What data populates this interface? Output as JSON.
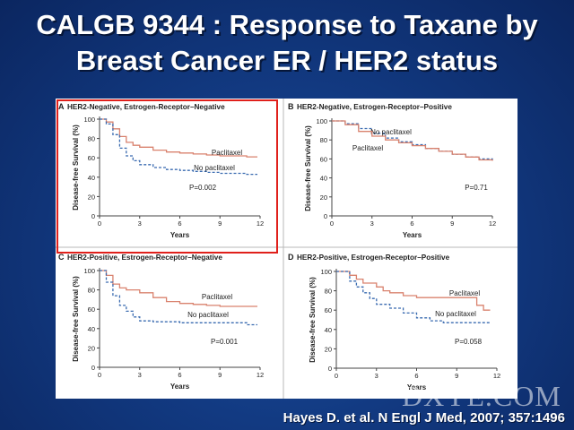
{
  "slide": {
    "title_line1": "CALGB 9344 : Response to Taxane by",
    "title_line2": "Breast Cancer ER / HER2 status",
    "citation": "Hayes D. et al. N Engl J Med, 2007; 357:1496",
    "watermark": "DXYE.COM"
  },
  "colors": {
    "paclitaxel": "#d9826e",
    "no_paclitaxel": "#3a6bb0",
    "highlight": "#e0201b"
  },
  "chart_data": [
    {
      "type": "line",
      "panel_letter": "A",
      "title": "HER2-Negative, Estrogen-Receptor–Negative",
      "xlabel": "Years",
      "ylabel": "Disease-free Survival (%)",
      "xticks": [
        0,
        3,
        6,
        9,
        12
      ],
      "yticks": [
        0,
        20,
        40,
        60,
        80,
        100
      ],
      "xlim": [
        0,
        12
      ],
      "ylim": [
        0,
        100
      ],
      "pvalue": "P=0.002",
      "highlighted": true,
      "series": [
        {
          "name": "Paclitaxel",
          "style": "solid",
          "x": [
            0,
            0.5,
            1,
            1.5,
            2,
            2.5,
            3,
            4,
            5,
            6,
            7,
            8,
            9,
            10,
            11,
            11.8
          ],
          "y": [
            100,
            97,
            90,
            82,
            76,
            73,
            71,
            68,
            66,
            65,
            64,
            63,
            62,
            62,
            61,
            61
          ]
        },
        {
          "name": "No paclitaxel",
          "style": "dashed",
          "x": [
            0,
            0.5,
            1,
            1.5,
            2,
            2.5,
            3,
            4,
            5,
            6,
            7,
            8,
            9,
            10,
            11,
            11.8
          ],
          "y": [
            100,
            95,
            84,
            70,
            62,
            57,
            53,
            50,
            48,
            47,
            46,
            45,
            44,
            44,
            43,
            43
          ]
        }
      ]
    },
    {
      "type": "line",
      "panel_letter": "B",
      "title": "HER2-Negative, Estrogen-Receptor–Positive",
      "xlabel": "Years",
      "ylabel": "Disease-free Survival (%)",
      "xticks": [
        0,
        3,
        6,
        9,
        12
      ],
      "yticks": [
        0,
        20,
        40,
        60,
        80,
        100
      ],
      "xlim": [
        0,
        12
      ],
      "ylim": [
        0,
        100
      ],
      "pvalue": "P=0.71",
      "series": [
        {
          "name": "No paclitaxel",
          "style": "dashed",
          "x": [
            0,
            1,
            2,
            3,
            4,
            5,
            6,
            7,
            8,
            9,
            10,
            11,
            12
          ],
          "y": [
            100,
            97,
            92,
            87,
            82,
            78,
            75,
            71,
            68,
            65,
            62,
            60,
            58
          ]
        },
        {
          "name": "Paclitaxel",
          "style": "solid",
          "x": [
            0,
            1,
            2,
            3,
            4,
            5,
            6,
            7,
            8,
            9,
            10,
            11,
            12
          ],
          "y": [
            100,
            96,
            89,
            84,
            80,
            77,
            74,
            71,
            68,
            65,
            62,
            59,
            58
          ]
        }
      ]
    },
    {
      "type": "line",
      "panel_letter": "C",
      "title": "HER2-Positive, Estrogen-Receptor–Negative",
      "xlabel": "Years",
      "ylabel": "Disease-free Survival (%)",
      "xticks": [
        0,
        3,
        6,
        9,
        12
      ],
      "yticks": [
        0,
        20,
        40,
        60,
        80,
        100
      ],
      "xlim": [
        0,
        12
      ],
      "ylim": [
        0,
        100
      ],
      "pvalue": "P=0.001",
      "series": [
        {
          "name": "Paclitaxel",
          "style": "solid",
          "x": [
            0,
            0.5,
            1,
            1.5,
            2,
            3,
            4,
            5,
            6,
            7,
            8,
            9,
            10,
            11,
            11.8
          ],
          "y": [
            100,
            95,
            86,
            82,
            80,
            77,
            72,
            68,
            66,
            65,
            64,
            63,
            63,
            63,
            63
          ]
        },
        {
          "name": "No paclitaxel",
          "style": "dashed",
          "x": [
            0,
            0.5,
            1,
            1.5,
            2,
            2.5,
            3,
            4,
            5,
            6,
            7,
            8,
            9,
            10,
            11,
            11.8
          ],
          "y": [
            100,
            88,
            74,
            64,
            58,
            52,
            48,
            47,
            47,
            46,
            46,
            46,
            46,
            46,
            44,
            44
          ]
        }
      ]
    },
    {
      "type": "line",
      "panel_letter": "D",
      "title": "HER2-Positive, Estrogen-Receptor–Positive",
      "xlabel": "Years",
      "ylabel": "Disease-free Survival (%)",
      "xticks": [
        0,
        3,
        6,
        9,
        12
      ],
      "yticks": [
        0,
        20,
        40,
        60,
        80,
        100
      ],
      "xlim": [
        0,
        12
      ],
      "ylim": [
        0,
        100
      ],
      "pvalue": "P=0.058",
      "series": [
        {
          "name": "Paclitaxel",
          "style": "solid",
          "x": [
            0,
            1,
            1.5,
            2,
            3,
            3.5,
            4,
            5,
            6,
            7,
            8,
            9,
            10,
            10.5,
            11,
            11.5
          ],
          "y": [
            100,
            96,
            92,
            88,
            84,
            80,
            78,
            75,
            73,
            73,
            73,
            73,
            73,
            65,
            60,
            60
          ]
        },
        {
          "name": "No paclitaxel",
          "style": "dashed",
          "x": [
            0,
            1,
            1.5,
            2,
            2.5,
            3,
            4,
            5,
            6,
            7,
            8,
            9,
            10,
            10.5,
            11,
            11.5
          ],
          "y": [
            100,
            90,
            84,
            78,
            72,
            66,
            62,
            57,
            52,
            49,
            47,
            47,
            47,
            47,
            47,
            47
          ]
        }
      ]
    }
  ]
}
